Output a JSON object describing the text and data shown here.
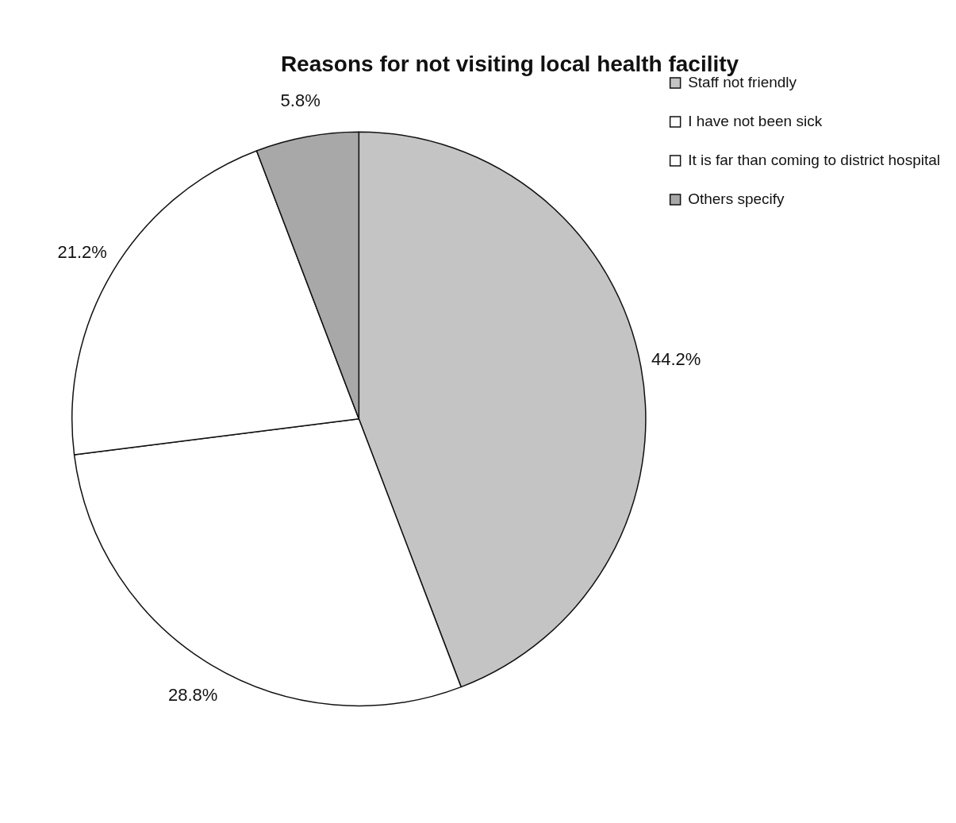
{
  "chart_data": {
    "type": "pie",
    "title": "Reasons for not visiting local health facility",
    "categories": [
      "Staff not friendly",
      "I have not been sick",
      "It is far than coming to district hospital",
      "Others specify"
    ],
    "values": [
      44.2,
      28.8,
      21.2,
      5.8
    ],
    "value_labels": [
      "44.2%",
      "28.8%",
      "21.2%",
      "5.8%"
    ],
    "colors": [
      "#c4c4c4",
      "#ffffff",
      "#ffffff",
      "#a8a8a8"
    ],
    "legend": "top right"
  }
}
